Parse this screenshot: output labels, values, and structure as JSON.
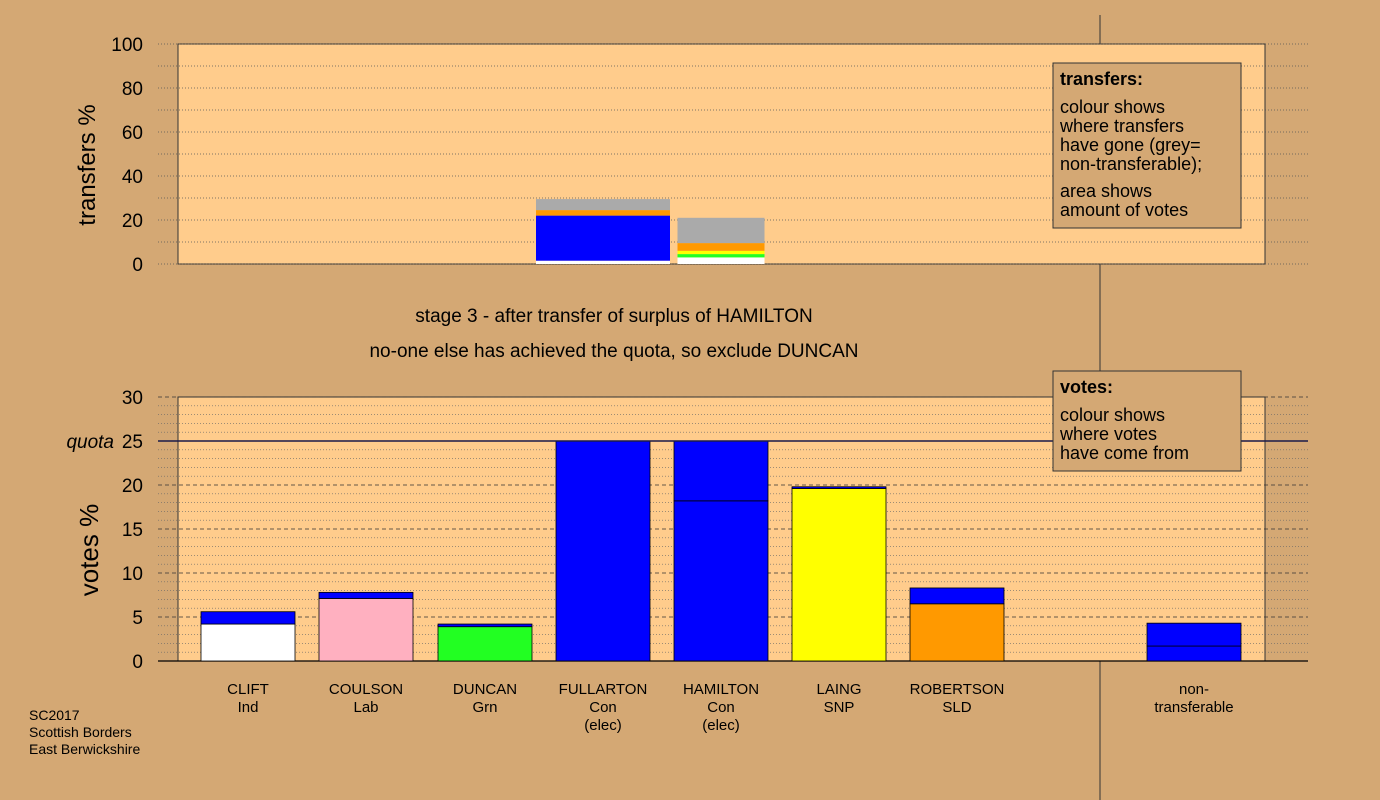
{
  "colors": {
    "background": "#d4a874",
    "plot_bg": "#ffcc8c",
    "Con": "#0000ff",
    "Ind": "#ffffff",
    "Lab": "#ffb0c0",
    "Grn": "#22ff22",
    "SNP": "#ffff00",
    "SLD": "#ff9900",
    "non_transferable": "#aaaaaa"
  },
  "headline": {
    "line1": "stage 3 - after transfer of surplus of HAMILTON",
    "line2": "no-one else has achieved the quota, so exclude DUNCAN"
  },
  "footer": {
    "line1": "SC2017",
    "line2": "Scottish Borders",
    "line3": "East Berwickshire"
  },
  "transfers_legend": {
    "title": "transfers:",
    "lines_a": [
      "colour shows",
      "where transfers",
      "have gone (grey=",
      "non-transferable);"
    ],
    "lines_b": [
      "area shows",
      "amount of votes"
    ]
  },
  "votes_legend": {
    "title": "votes:",
    "lines": [
      "colour shows",
      "where votes",
      "have come from"
    ]
  },
  "chart_data": [
    {
      "type": "bar",
      "ylabel": "transfers %",
      "ylim": [
        0,
        100
      ],
      "yticks": [
        0,
        20,
        40,
        60,
        80,
        100
      ],
      "bars": [
        {
          "name": "FULLARTON",
          "segments": [
            {
              "party": "Ind",
              "value": 1.5
            },
            {
              "party": "Con",
              "value": 20.5
            },
            {
              "party": "SLD",
              "value": 2.5
            },
            {
              "party": "non_transferable",
              "value": 5.0
            }
          ]
        },
        {
          "name": "HAMILTON",
          "segments": [
            {
              "party": "Ind",
              "value": 3.0
            },
            {
              "party": "Grn",
              "value": 1.5
            },
            {
              "party": "SNP",
              "value": 1.5
            },
            {
              "party": "SLD",
              "value": 3.5
            },
            {
              "party": "non_transferable",
              "value": 11.5
            }
          ]
        }
      ]
    },
    {
      "type": "bar",
      "ylabel": "votes %",
      "ylim": [
        0,
        30
      ],
      "yticks": [
        0,
        5,
        10,
        15,
        20,
        25,
        30
      ],
      "quota": {
        "label": "quota",
        "value": 25
      },
      "candidates": [
        {
          "name": "CLIFT",
          "party": "Ind",
          "extra": "",
          "segments": [
            {
              "party": "Ind",
              "value": 4.2
            },
            {
              "party": "Con",
              "value": 1.4
            }
          ]
        },
        {
          "name": "COULSON",
          "party": "Lab",
          "extra": "",
          "segments": [
            {
              "party": "Lab",
              "value": 7.1
            },
            {
              "party": "Con",
              "value": 0.7
            }
          ]
        },
        {
          "name": "DUNCAN",
          "party": "Grn",
          "extra": "",
          "segments": [
            {
              "party": "Grn",
              "value": 3.9
            },
            {
              "party": "Con",
              "value": 0.3
            }
          ]
        },
        {
          "name": "FULLARTON",
          "party": "Con",
          "extra": "(elec)",
          "segments": [
            {
              "party": "Con",
              "value": 25.0
            }
          ]
        },
        {
          "name": "HAMILTON",
          "party": "Con",
          "extra": "(elec)",
          "segments": [
            {
              "party": "Con",
              "value": 18.2
            },
            {
              "party": "Con",
              "value": 6.8
            }
          ]
        },
        {
          "name": "LAING",
          "party": "SNP",
          "extra": "",
          "segments": [
            {
              "party": "SNP",
              "value": 19.6
            },
            {
              "party": "Con",
              "value": 0.2
            }
          ]
        },
        {
          "name": "ROBERTSON",
          "party": "SLD",
          "extra": "",
          "segments": [
            {
              "party": "SLD",
              "value": 6.5
            },
            {
              "party": "Con",
              "value": 1.8
            }
          ]
        }
      ],
      "non_transferable": {
        "line1": "non-",
        "line2": "transferable",
        "segments": [
          {
            "party": "Con",
            "value": 1.7
          },
          {
            "party": "Con",
            "value": 2.6
          }
        ]
      }
    }
  ]
}
